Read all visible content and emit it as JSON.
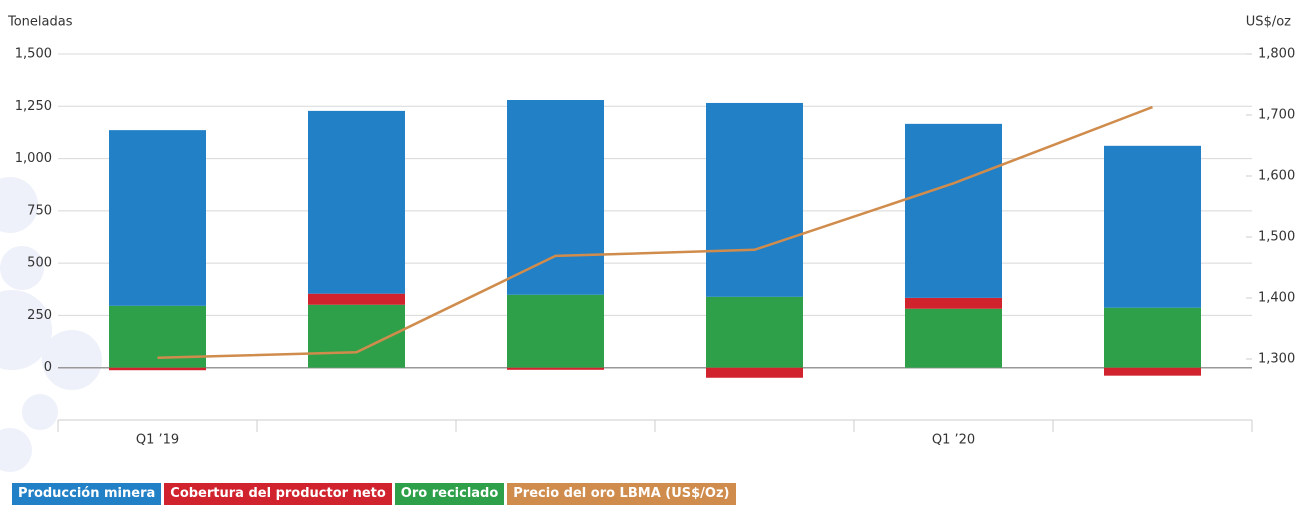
{
  "chart_data": {
    "type": "bar",
    "stacked": true,
    "y_label": "Toneladas",
    "y2_label": "US$/oz",
    "categories": [
      "Q1 ’19",
      null,
      null,
      null,
      "Q1 ’20",
      null
    ],
    "series": [
      {
        "name": "Producción minera",
        "color": "#2280c7",
        "values": [
          840,
          874,
          931,
          927,
          832,
          774
        ]
      },
      {
        "name": "Cobertura del productor neto",
        "color": "#d1232e",
        "values": [
          -12,
          53,
          -10,
          -48,
          52,
          -38
        ]
      },
      {
        "name": "Oro reciclado",
        "color": "#2ea04a",
        "values": [
          296,
          301,
          349,
          339,
          282,
          287
        ]
      },
      {
        "name": "Precio del oro LBMA (US$/Oz)",
        "color": "#d08c4c",
        "type": "line",
        "axis": "y2",
        "values": [
          1302,
          1311,
          1469,
          1479,
          1588,
          1713
        ]
      }
    ],
    "ylim": [
      -250,
      1500
    ],
    "yticks": [
      0,
      250,
      500,
      750,
      {
        "value": 1000,
        "label": "1,000"
      },
      {
        "value": 1250,
        "label": "1,250"
      },
      {
        "value": 1500,
        "label": "1,500"
      }
    ],
    "y2lim": [
      1200,
      1800
    ],
    "y2ticks": [
      {
        "value": 1300,
        "label": "1,300"
      },
      {
        "value": 1400,
        "label": "1,400"
      },
      {
        "value": 1500,
        "label": "1,500"
      },
      {
        "value": 1600,
        "label": "1,600"
      },
      {
        "value": 1700,
        "label": "1,700"
      },
      {
        "value": 1800,
        "label": "1,800"
      }
    ],
    "grid": true
  }
}
